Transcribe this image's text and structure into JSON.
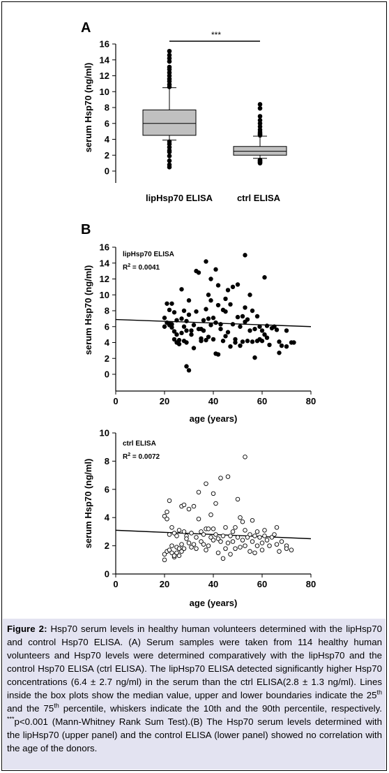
{
  "caption": {
    "label": "Figure 2:",
    "text_1": "Hsp70 serum levels in healthy human volunteers determined with the lipHsp70 and control Hsp70 ELISA. (A) Serum samples were taken from 114 healthy human volunteers and Hsp70 levels were determined comparatively with the lipHsp70 and the control Hsp70 ELISA (ctrl ELISA). The lipHsp70 ELISA detected significantly higher Hsp70 concentrations (6.4 ± 2.7 ng/ml) in the serum than the ctrl ELISA(2.8 ± 1.3 ng/ml). Lines inside the box plots show the median value, upper and lower boundaries indicate the 25",
    "sup_1": "th",
    "text_2": " and the 75",
    "sup_2": "th",
    "text_3": " percentile, whiskers indicate the 10th and the 90th percentile, respectively. ",
    "sup_3": "***",
    "text_4": "p<0.001 (Mann-Whitney Rank Sum Test).(B) The Hsp70 serum levels determined with the lipHsp70 (upper panel) and the control ELISA (lower panel) showed no correlation with the age of the donors."
  },
  "chart_data": [
    {
      "panel": "A",
      "type": "box",
      "ylabel": "serum Hsp70 (ng/ml)",
      "ylim": [
        0,
        16
      ],
      "yticks": [
        "0",
        "2",
        "4",
        "6",
        "8",
        "10",
        "12",
        "14",
        "16"
      ],
      "significance": "***",
      "categories": [
        "lipHsp70 ELISA",
        "ctrl ELISA"
      ],
      "boxes": [
        {
          "name": "lipHsp70 ELISA",
          "p10": 3.9,
          "q1": 4.5,
          "median": 6.0,
          "q3": 7.7,
          "p90": 10.5,
          "color": "#c0c0c0",
          "outliers": [
            0.5,
            0.8,
            1.3,
            1.9,
            2.4,
            2.6,
            3.0,
            3.4,
            3.7,
            10.6,
            10.9,
            11.3,
            11.6,
            12.0,
            12.4,
            12.8,
            13.1,
            13.8,
            14.2,
            14.6,
            15.1
          ]
        },
        {
          "name": "ctrl ELISA",
          "p10": 1.6,
          "q1": 2.0,
          "median": 2.5,
          "q3": 3.1,
          "p90": 4.4,
          "color": "#c0c0c0",
          "outliers": [
            1.0,
            1.1,
            1.2,
            1.3,
            1.4,
            4.5,
            4.6,
            4.7,
            4.9,
            5.2,
            5.6,
            6.0,
            6.4,
            6.9,
            7.9,
            8.4
          ]
        }
      ]
    },
    {
      "panel": "B",
      "type": "scatter",
      "title": "lipHsp70 ELISA",
      "r2_label": "R",
      "r2_sup": "2",
      "r2_value": " = 0.0041",
      "xlabel": "age (years)",
      "ylabel": "serum Hsp70 (ng/ml)",
      "xlim": [
        0,
        80
      ],
      "ylim": [
        0,
        16
      ],
      "xticks": [
        "0",
        "20",
        "40",
        "60",
        "80"
      ],
      "yticks": [
        "0",
        "2",
        "4",
        "6",
        "8",
        "10",
        "12",
        "14",
        "16"
      ],
      "marker": "filled",
      "regression": {
        "x": [
          0,
          80
        ],
        "y": [
          6.9,
          6.0
        ]
      },
      "points": [
        [
          20,
          6.0
        ],
        [
          20,
          7.1
        ],
        [
          21,
          6.5
        ],
        [
          21,
          8.9
        ],
        [
          22,
          6.2
        ],
        [
          22,
          8.1
        ],
        [
          22,
          6.4
        ],
        [
          23,
          8.9
        ],
        [
          23,
          6.3
        ],
        [
          23,
          5.9
        ],
        [
          24,
          7.8
        ],
        [
          24,
          5.4
        ],
        [
          24,
          4.4
        ],
        [
          25,
          4.0
        ],
        [
          25,
          6.8
        ],
        [
          25,
          5.0
        ],
        [
          26,
          4.3
        ],
        [
          26,
          3.8
        ],
        [
          27,
          10.7
        ],
        [
          27,
          5.2
        ],
        [
          27,
          7.0
        ],
        [
          28,
          8.0
        ],
        [
          28,
          4.2
        ],
        [
          28,
          6.0
        ],
        [
          29,
          6.7
        ],
        [
          29,
          5.5
        ],
        [
          29,
          4.0
        ],
        [
          29,
          1.0
        ],
        [
          30,
          0.5
        ],
        [
          30,
          7.5
        ],
        [
          30,
          9.3
        ],
        [
          31,
          5.5
        ],
        [
          31,
          5.0
        ],
        [
          32,
          6.2
        ],
        [
          32,
          3.3
        ],
        [
          33,
          13.0
        ],
        [
          33,
          7.9
        ],
        [
          34,
          12.8
        ],
        [
          34,
          5.7
        ],
        [
          35,
          4.5
        ],
        [
          35,
          4.2
        ],
        [
          35,
          5.7
        ],
        [
          36,
          6.8
        ],
        [
          36,
          5.5
        ],
        [
          37,
          14.2
        ],
        [
          37,
          8.2
        ],
        [
          37,
          4.3
        ],
        [
          38,
          10.0
        ],
        [
          38,
          7.0
        ],
        [
          38,
          4.7
        ],
        [
          39,
          12.0
        ],
        [
          39,
          9.3
        ],
        [
          39,
          6.2
        ],
        [
          40,
          4.4
        ],
        [
          40,
          7.1
        ],
        [
          41,
          13.2
        ],
        [
          41,
          2.6
        ],
        [
          41,
          6.5
        ],
        [
          42,
          11.2
        ],
        [
          42,
          2.5
        ],
        [
          42,
          8.7
        ],
        [
          43,
          6.3
        ],
        [
          43,
          5.7
        ],
        [
          44,
          8.1
        ],
        [
          44,
          4.2
        ],
        [
          45,
          9.5
        ],
        [
          45,
          7.9
        ],
        [
          45,
          4.8
        ],
        [
          46,
          10.6
        ],
        [
          46,
          5.3
        ],
        [
          47,
          8.8
        ],
        [
          47,
          3.5
        ],
        [
          48,
          6.3
        ],
        [
          48,
          11.0
        ],
        [
          49,
          4.4
        ],
        [
          49,
          4.0
        ],
        [
          50,
          11.3
        ],
        [
          50,
          7.2
        ],
        [
          51,
          6.0
        ],
        [
          51,
          3.6
        ],
        [
          52,
          7.3
        ],
        [
          52,
          4.1
        ],
        [
          53,
          15.0
        ],
        [
          53,
          8.4
        ],
        [
          53,
          6.6
        ],
        [
          54,
          4.2
        ],
        [
          54,
          6.9
        ],
        [
          55,
          10.0
        ],
        [
          55,
          5.5
        ],
        [
          56,
          4.1
        ],
        [
          56,
          8.0
        ],
        [
          57,
          2.1
        ],
        [
          57,
          5.7
        ],
        [
          58,
          7.3
        ],
        [
          58,
          4.2
        ],
        [
          59,
          6.0
        ],
        [
          59,
          4.4
        ],
        [
          60,
          4.2
        ],
        [
          60,
          5.5
        ],
        [
          61,
          12.2
        ],
        [
          61,
          5.0
        ],
        [
          62,
          4.6
        ],
        [
          62,
          6.1
        ],
        [
          63,
          3.7
        ],
        [
          64,
          5.8
        ],
        [
          65,
          6.0
        ],
        [
          66,
          5.6
        ],
        [
          67,
          4.1
        ],
        [
          67,
          2.7
        ],
        [
          68,
          3.6
        ],
        [
          70,
          5.5
        ],
        [
          70,
          3.5
        ],
        [
          72,
          4.0
        ],
        [
          73,
          4.0
        ]
      ]
    },
    {
      "panel": "B-lower",
      "type": "scatter",
      "title": "ctrl ELISA",
      "r2_label": "R",
      "r2_sup": "2",
      "r2_value": " = 0.0072",
      "xlabel": "age (years)",
      "ylabel": "serum Hsp70 (ng/ml)",
      "xlim": [
        0,
        80
      ],
      "ylim": [
        0,
        10
      ],
      "xticks": [
        "0",
        "20",
        "40",
        "60",
        "80"
      ],
      "yticks": [
        "0",
        "2",
        "4",
        "6",
        "8",
        "10"
      ],
      "marker": "open",
      "regression": {
        "x": [
          0,
          80
        ],
        "y": [
          3.1,
          2.5
        ]
      },
      "points": [
        [
          20,
          1.0
        ],
        [
          20,
          1.4
        ],
        [
          20,
          4.1
        ],
        [
          21,
          4.4
        ],
        [
          21,
          1.6
        ],
        [
          21,
          3.9
        ],
        [
          22,
          5.2
        ],
        [
          22,
          2.8
        ],
        [
          22,
          1.7
        ],
        [
          23,
          1.5
        ],
        [
          23,
          2.0
        ],
        [
          23,
          3.3
        ],
        [
          24,
          1.2
        ],
        [
          24,
          1.3
        ],
        [
          24,
          2.9
        ],
        [
          25,
          1.5
        ],
        [
          25,
          1.9
        ],
        [
          25,
          2.7
        ],
        [
          26,
          1.3
        ],
        [
          26,
          1.8
        ],
        [
          26,
          3.1
        ],
        [
          27,
          4.8
        ],
        [
          27,
          1.6
        ],
        [
          27,
          2.1
        ],
        [
          28,
          4.9
        ],
        [
          28,
          3.0
        ],
        [
          28,
          1.8
        ],
        [
          29,
          2.7
        ],
        [
          29,
          2.5
        ],
        [
          30,
          4.6
        ],
        [
          30,
          2.2
        ],
        [
          31,
          1.9
        ],
        [
          31,
          2.9
        ],
        [
          32,
          4.8
        ],
        [
          32,
          2.1
        ],
        [
          33,
          2.6
        ],
        [
          33,
          1.8
        ],
        [
          34,
          3.9
        ],
        [
          34,
          5.8
        ],
        [
          35,
          2.3
        ],
        [
          35,
          3.0
        ],
        [
          36,
          2.1
        ],
        [
          36,
          2.8
        ],
        [
          37,
          6.4
        ],
        [
          37,
          3.2
        ],
        [
          37,
          1.7
        ],
        [
          38,
          3.2
        ],
        [
          38,
          2.0
        ],
        [
          39,
          4.2
        ],
        [
          39,
          2.6
        ],
        [
          40,
          5.7
        ],
        [
          40,
          3.2
        ],
        [
          40,
          2.4
        ],
        [
          41,
          5.0
        ],
        [
          41,
          2.8
        ],
        [
          42,
          1.5
        ],
        [
          42,
          2.5
        ],
        [
          43,
          6.8
        ],
        [
          43,
          2.3
        ],
        [
          44,
          1.1
        ],
        [
          44,
          2.7
        ],
        [
          45,
          3.3
        ],
        [
          45,
          1.8
        ],
        [
          46,
          6.9
        ],
        [
          46,
          2.2
        ],
        [
          47,
          2.7
        ],
        [
          47,
          1.4
        ],
        [
          48,
          3.0
        ],
        [
          48,
          2.3
        ],
        [
          49,
          3.3
        ],
        [
          49,
          1.8
        ],
        [
          50,
          5.3
        ],
        [
          50,
          2.6
        ],
        [
          51,
          4.0
        ],
        [
          51,
          1.9
        ],
        [
          52,
          3.7
        ],
        [
          52,
          2.4
        ],
        [
          53,
          8.3
        ],
        [
          53,
          3.1
        ],
        [
          53,
          2.0
        ],
        [
          54,
          2.6
        ],
        [
          55,
          2.8
        ],
        [
          55,
          1.6
        ],
        [
          56,
          3.8
        ],
        [
          56,
          2.3
        ],
        [
          57,
          2.7
        ],
        [
          57,
          1.5
        ],
        [
          58,
          3.0
        ],
        [
          58,
          2.0
        ],
        [
          59,
          2.6
        ],
        [
          60,
          2.2
        ],
        [
          60,
          1.7
        ],
        [
          61,
          3.1
        ],
        [
          61,
          2.7
        ],
        [
          62,
          2.4
        ],
        [
          63,
          2.0
        ],
        [
          64,
          2.6
        ],
        [
          65,
          2.8
        ],
        [
          66,
          3.3
        ],
        [
          66,
          2.1
        ],
        [
          67,
          1.6
        ],
        [
          68,
          2.3
        ],
        [
          70,
          2.0
        ],
        [
          70,
          1.8
        ],
        [
          72,
          1.7
        ]
      ]
    }
  ],
  "colors": {
    "caption_background": "#e3e3f1",
    "box_fill": "#c0c0c0",
    "marker": "#000000"
  }
}
